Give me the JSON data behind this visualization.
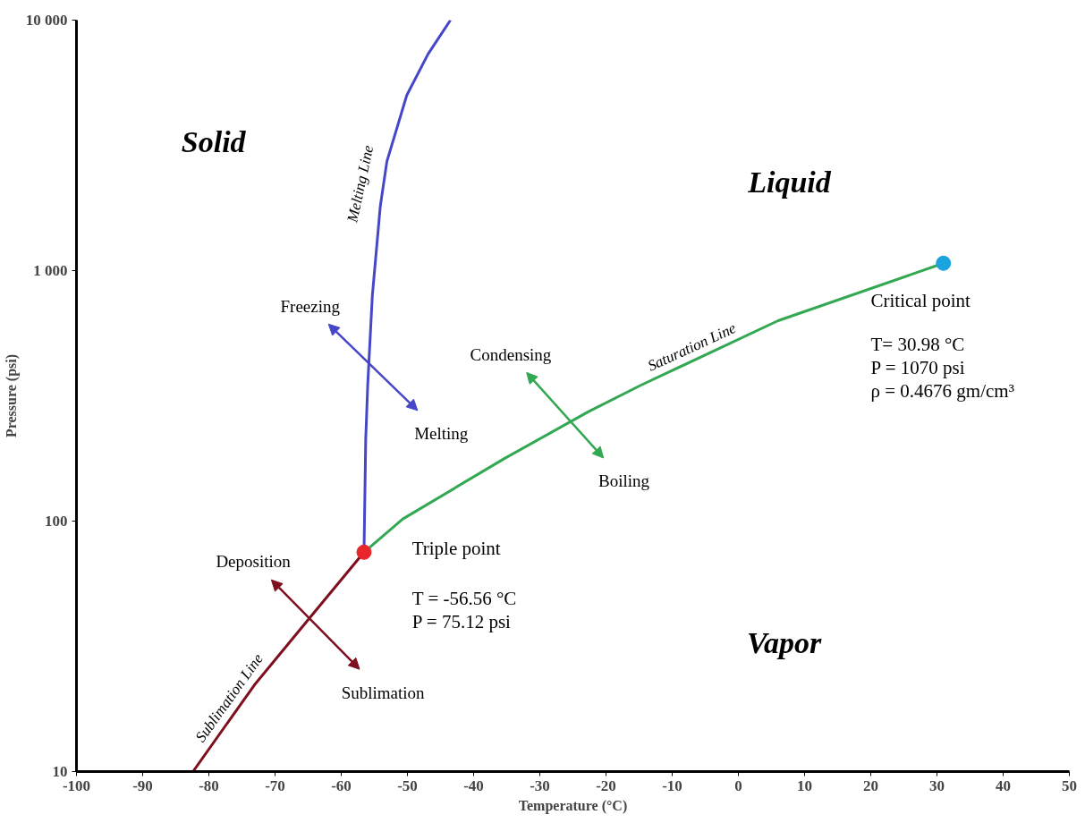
{
  "chart_data": {
    "type": "line",
    "xlabel": "Temperature (°C)",
    "ylabel": "Pressure (psi)",
    "log": "y",
    "xlim": [
      -100,
      50
    ],
    "xticks": [
      -100,
      -90,
      -80,
      -70,
      -60,
      -50,
      -40,
      -30,
      -20,
      -10,
      0,
      10,
      20,
      30,
      40,
      50
    ],
    "ylim": [
      10,
      10000
    ],
    "yticks": [
      10,
      100,
      {
        "value": 1000,
        "label": "1 000"
      },
      {
        "value": 10000,
        "label": "10 000"
      }
    ],
    "grid": false,
    "legend": false,
    "marker": "none",
    "line_style": "solid",
    "series": [
      {
        "name": "Melting Line",
        "color": "#4646c8",
        "x": [
          -56.56,
          -56.3,
          -56,
          -55.3,
          -54.1,
          -53.1,
          -50.1,
          -46.9,
          -43.5
        ],
        "values": [
          75.12,
          213,
          349,
          795,
          1807,
          2730,
          5010,
          7310,
          10000
        ]
      },
      {
        "name": "Saturation Line",
        "color": "#33a852",
        "x": [
          -56.56,
          -50.7,
          -35.3,
          -22.7,
          -14.7,
          6,
          30.98
        ],
        "values": [
          75.12,
          102,
          178,
          273,
          349,
          631,
          1070
        ]
      },
      {
        "name": "Sublimation Line",
        "color": "#7d0f1e",
        "x": [
          -82.4,
          -73.1,
          -65.3,
          -56.56
        ],
        "values": [
          10,
          22.2,
          39.5,
          75.12
        ]
      },
      {
        "type": "scatter",
        "marker": "circle",
        "color": "#e8262c",
        "x": [
          -56.56
        ],
        "values": [
          75.12
        ]
      },
      {
        "type": "scatter",
        "marker": "circle",
        "color": "#1ba3e0",
        "x": [
          30.98
        ],
        "values": [
          1070
        ]
      }
    ],
    "annotations": [
      "Solid",
      "Liquid",
      "Vapor",
      "Freezing",
      "Melting",
      "Condensing",
      "Boiling",
      "Deposition",
      "Sublimation",
      "Triple point",
      "T = -56.56 °C",
      "P = 75.12 psi",
      "Critical point",
      "T= 30.98 °C",
      "P = 1070 psi",
      "ρ = 0.4676 gm/cm³"
    ]
  }
}
